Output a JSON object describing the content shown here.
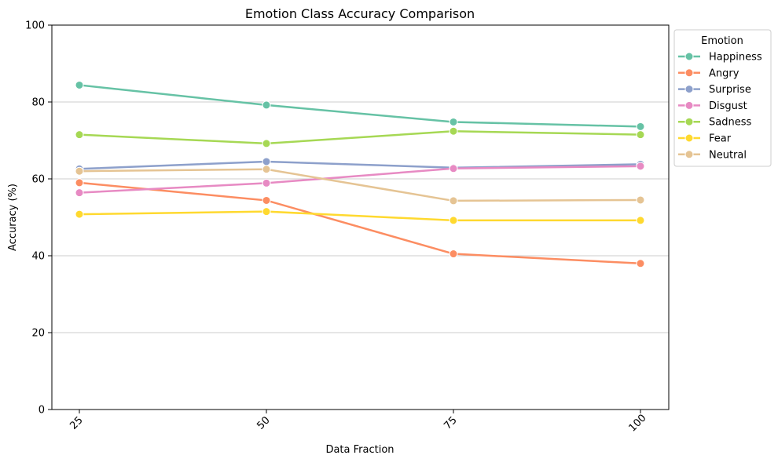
{
  "chart_data": {
    "type": "line",
    "title": "Emotion Class Accuracy Comparison",
    "xlabel": "Data Fraction",
    "ylabel": "Accuracy (%)",
    "x": [
      25,
      50,
      75,
      100
    ],
    "ylim": [
      0,
      100
    ],
    "yticks": [
      0,
      20,
      40,
      60,
      80,
      100
    ],
    "grid": "horizontal",
    "legend": {
      "title": "Emotion",
      "placement": "outside-top-right"
    },
    "series": [
      {
        "name": "Happiness",
        "color": "#66c2a5",
        "values": [
          84.4,
          79.2,
          74.8,
          73.6
        ]
      },
      {
        "name": "Angry",
        "color": "#fc8d62",
        "values": [
          59.0,
          54.4,
          40.5,
          38.0
        ]
      },
      {
        "name": "Surprise",
        "color": "#8da0cb",
        "values": [
          62.6,
          64.5,
          62.9,
          63.8
        ]
      },
      {
        "name": "Disgust",
        "color": "#e78ac3",
        "values": [
          56.4,
          58.9,
          62.7,
          63.3
        ]
      },
      {
        "name": "Sadness",
        "color": "#a6d854",
        "values": [
          71.5,
          69.2,
          72.4,
          71.5
        ]
      },
      {
        "name": "Fear",
        "color": "#ffd92f",
        "values": [
          50.8,
          51.5,
          49.2,
          49.2
        ]
      },
      {
        "name": "Neutral",
        "color": "#e5c494",
        "values": [
          62.0,
          62.5,
          54.3,
          54.5
        ]
      }
    ]
  }
}
